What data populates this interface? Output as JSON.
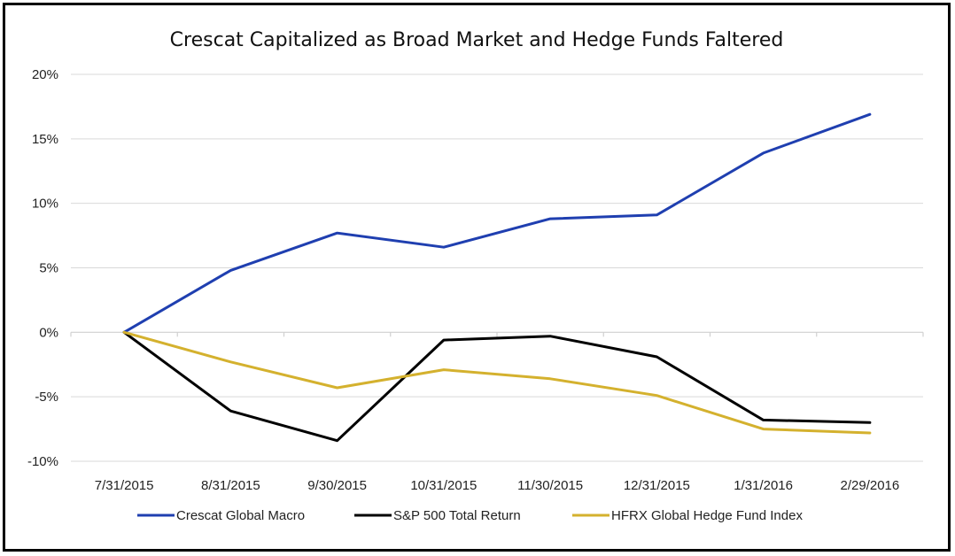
{
  "chart_data": {
    "type": "line",
    "title": "Crescat Capitalized as Broad Market and Hedge Funds Faltered",
    "xlabel": "",
    "ylabel": "",
    "categories": [
      "7/31/2015",
      "8/31/2015",
      "9/30/2015",
      "10/31/2015",
      "11/30/2015",
      "12/31/2015",
      "1/31/2016",
      "2/29/2016"
    ],
    "ylim": [
      -10,
      20
    ],
    "yticks": [
      20,
      15,
      10,
      5,
      0,
      -5,
      -10
    ],
    "ytick_labels": [
      "20%",
      "15%",
      "10%",
      "5%",
      "0%",
      "-5%",
      "-10%"
    ],
    "grid": true,
    "legend_position": "bottom",
    "series": [
      {
        "name": "Crescat Global Macro",
        "color": "#1f3fb0",
        "values": [
          0,
          4.8,
          7.7,
          6.6,
          8.8,
          9.1,
          13.9,
          16.9
        ]
      },
      {
        "name": "S&P 500 Total Return",
        "color": "#000000",
        "values": [
          0,
          -6.1,
          -8.4,
          -0.6,
          -0.3,
          -1.9,
          -6.8,
          -7.0
        ]
      },
      {
        "name": "HFRX Global Hedge Fund Index",
        "color": "#d4b12e",
        "values": [
          0,
          -2.3,
          -4.3,
          -2.9,
          -3.6,
          -4.9,
          -7.5,
          -7.8
        ]
      }
    ]
  }
}
